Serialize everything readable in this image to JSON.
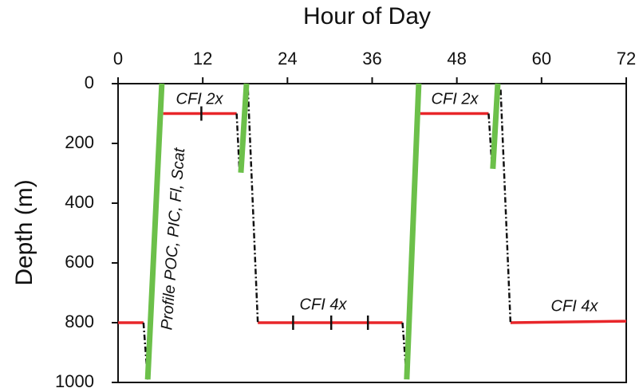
{
  "chart_data": {
    "type": "line",
    "xlabel": "Hour of Day",
    "ylabel": "Depth (m)",
    "x_axis_position": "top",
    "y_reversed": true,
    "xlim": [
      0,
      72
    ],
    "xticks": [
      0,
      12,
      24,
      36,
      48,
      60,
      72
    ],
    "ylim": [
      0,
      1000
    ],
    "yticks": [
      0,
      200,
      400,
      600,
      800,
      1000
    ],
    "series": [
      {
        "color": "#e8262a",
        "style": "solid",
        "x": [
          0,
          3.6,
          null,
          6.4,
          16.8,
          null,
          19.8,
          40.3,
          null,
          42.8,
          52.5,
          null,
          55.6,
          72
        ],
        "values": [
          800,
          800,
          null,
          100,
          100,
          null,
          800,
          800,
          null,
          100,
          100,
          null,
          800,
          795
        ]
      },
      {
        "color": "#111111",
        "style": "dashdot",
        "x": [
          3.6,
          4.2,
          null,
          16.8,
          17.2,
          null,
          18.4,
          19.8,
          null,
          40.3,
          40.9,
          null,
          52.5,
          53.0,
          null,
          54.2,
          55.6
        ],
        "values": [
          800,
          990,
          null,
          100,
          290,
          null,
          20,
          800,
          null,
          800,
          985,
          null,
          100,
          280,
          null,
          20,
          800
        ]
      },
      {
        "color": "#6cc04a",
        "style": "thick",
        "x": [
          4.2,
          6.2,
          null,
          17.4,
          18.2,
          null,
          40.9,
          42.6,
          null,
          53.1,
          53.8
        ],
        "values": [
          990,
          0,
          null,
          298,
          0,
          null,
          990,
          0,
          null,
          285,
          0
        ]
      }
    ],
    "markers": {
      "color": "#111111",
      "x": [
        11.8,
        24.8,
        30.2,
        35.4
      ],
      "values": [
        100,
        800,
        800,
        800
      ]
    },
    "annotations": [
      "CFI 2x",
      "CFI 2x",
      "CFI 4x",
      "CFI 4x",
      "Profile POC, PIC, Fl, Scat"
    ]
  }
}
